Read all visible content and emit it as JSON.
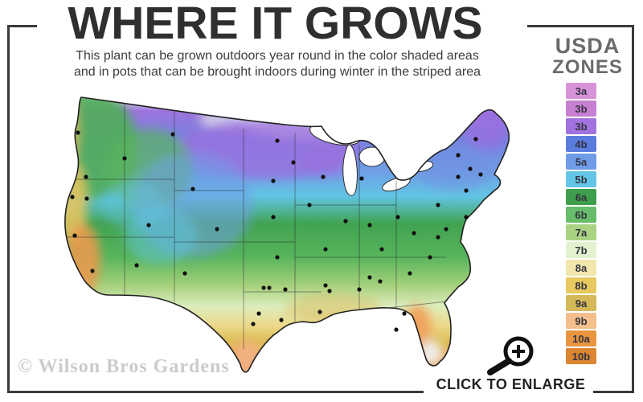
{
  "header": {
    "title": "WHERE IT GROWS",
    "subtitle_line1": "This plant can be grown outdoors year round in the color shaded areas",
    "subtitle_line2": "and in pots that can be brought indoors during winter in the striped area"
  },
  "legend": {
    "title_line1": "USDA",
    "title_line2": "ZONES",
    "zones": [
      {
        "label": "3a",
        "color": "#d893d8"
      },
      {
        "label": "3b",
        "color": "#c77fd2"
      },
      {
        "label": "3b",
        "color": "#a273e0"
      },
      {
        "label": "4b",
        "color": "#5a7cdf"
      },
      {
        "label": "5a",
        "color": "#6f9be8"
      },
      {
        "label": "5b",
        "color": "#64c6e6"
      },
      {
        "label": "6a",
        "color": "#3e9e4c"
      },
      {
        "label": "6b",
        "color": "#68bd6b"
      },
      {
        "label": "7a",
        "color": "#a9d282"
      },
      {
        "label": "7b",
        "color": "#e2f1d0"
      },
      {
        "label": "8a",
        "color": "#f1e6ab"
      },
      {
        "label": "8b",
        "color": "#e7c95f"
      },
      {
        "label": "9a",
        "color": "#d5b857"
      },
      {
        "label": "9b",
        "color": "#f4bf8d"
      },
      {
        "label": "10a",
        "color": "#e99540"
      },
      {
        "label": "10b",
        "color": "#dc8531"
      }
    ]
  },
  "map": {
    "description": "USDA plant hardiness zones map of the continental United States, shaded from purple and blue zones in the north through green zones in the center to yellow and orange zones in the south, with black city marker dots in each state"
  },
  "footer": {
    "watermark": "© Wilson Bros Gardens",
    "enlarge_label": "CLICK TO ENLARGE"
  }
}
